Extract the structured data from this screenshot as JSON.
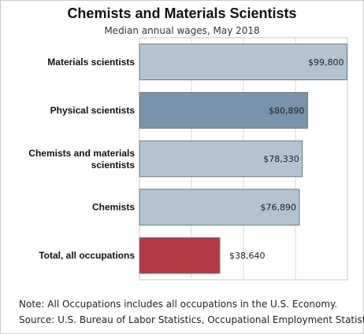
{
  "chart_data": {
    "type": "bar",
    "orientation": "horizontal",
    "title": "Chemists and Materials Scientists",
    "subtitle": "Median annual wages, May 2018",
    "categories": [
      "Materials scientists",
      "Physical scientists",
      "Chemists and materials scientists",
      "Chemists",
      "Total, all occupations"
    ],
    "values": [
      99800,
      80890,
      78330,
      76890,
      38640
    ],
    "value_labels": [
      "$99,800",
      "$80,890",
      "$78,330",
      "$76,890",
      "$38,640"
    ],
    "bar_colors": [
      "#b3c3d0",
      "#7893aa",
      "#b3c3d0",
      "#b3c3d0",
      "#b33a45"
    ],
    "xlim": [
      0,
      100000
    ],
    "grid": true
  },
  "notes": {
    "note": "Note: All Occupations includes all occupations in the U.S. Economy.",
    "source": "Source: U.S. Bureau of Labor Statistics, Occupational Employment Statistics"
  }
}
